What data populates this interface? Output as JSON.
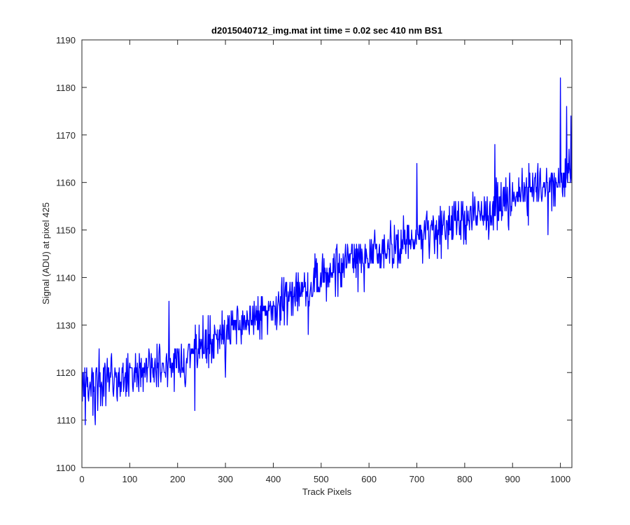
{
  "chart_data": {
    "type": "line",
    "title": "d2015040712_img.mat int time = 0.02 sec  410 nm BS1",
    "xlabel": "Track Pixels",
    "ylabel": "Signal (ADU) at pixel 425",
    "xlim": [
      0,
      1024
    ],
    "ylim": [
      1100,
      1190
    ],
    "xticks": [
      0,
      100,
      200,
      300,
      400,
      500,
      600,
      700,
      800,
      900,
      1000
    ],
    "yticks": [
      1100,
      1110,
      1120,
      1130,
      1140,
      1150,
      1160,
      1170,
      1180,
      1190
    ],
    "grid": false,
    "legend": "none",
    "line_color": "#0000ff",
    "series": [
      {
        "x_start": 1,
        "x_step": 1,
        "points_count": 1024,
        "trend_points": [
          [
            1,
            1117
          ],
          [
            200,
            1122
          ],
          [
            400,
            1134
          ],
          [
            600,
            1145
          ],
          [
            800,
            1152
          ],
          [
            1024,
            1162
          ]
        ],
        "noise_amplitude_approx": 4,
        "notable_points": [
          [
            7,
            1109
          ],
          [
            28,
            1109
          ],
          [
            182,
            1135
          ],
          [
            236,
            1112
          ],
          [
            300,
            1119
          ],
          [
            473,
            1128
          ],
          [
            700,
            1164
          ],
          [
            863,
            1168
          ],
          [
            974,
            1149
          ],
          [
            1000,
            1182
          ],
          [
            1013,
            1176
          ],
          [
            1022,
            1174
          ]
        ]
      }
    ]
  }
}
